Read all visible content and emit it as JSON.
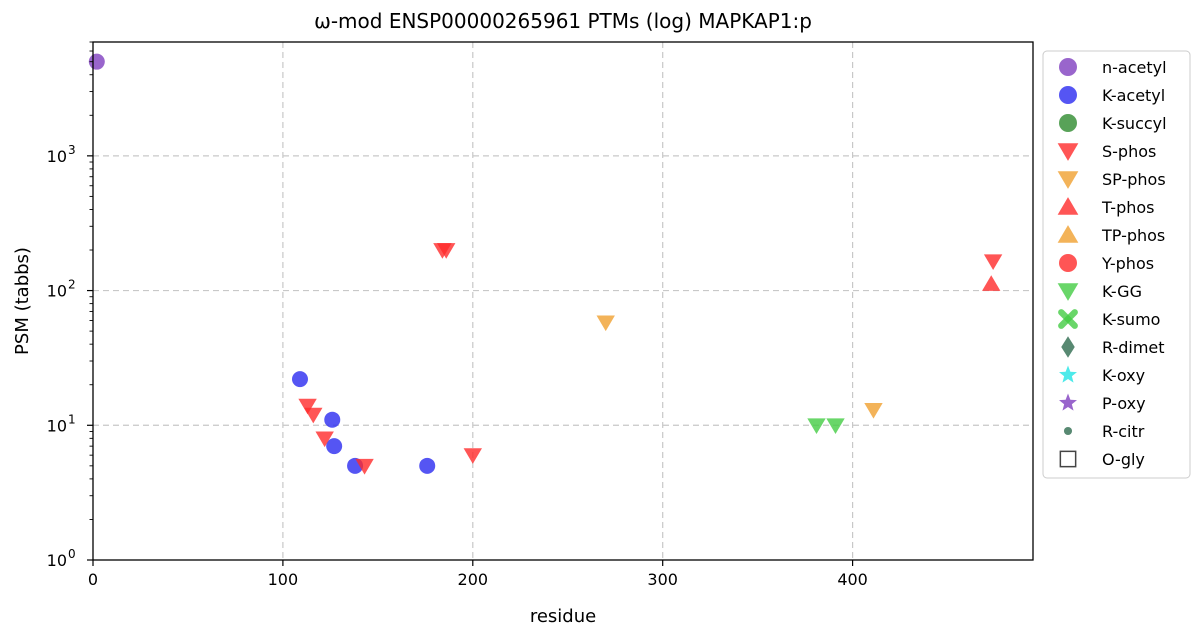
{
  "chart_data": {
    "type": "scatter",
    "title": "ω-mod ENSP00000265961 PTMs (log) MAPKAP1:p",
    "xlabel": "residue",
    "ylabel": "PSM (tabbs)",
    "xlim": [
      0,
      495
    ],
    "ylim": [
      1,
      7000
    ],
    "y_scale": "log",
    "grid": true,
    "legend_placement": "outside-right",
    "x_ticks": [
      {
        "value": 0,
        "label": "0"
      },
      {
        "value": 100,
        "label": "100"
      },
      {
        "value": 200,
        "label": "200"
      },
      {
        "value": 300,
        "label": "300"
      },
      {
        "value": 400,
        "label": "400"
      }
    ],
    "y_ticks": [
      {
        "value": 1,
        "base": "10",
        "exp": "0"
      },
      {
        "value": 10,
        "base": "10",
        "exp": "1"
      },
      {
        "value": 100,
        "base": "10",
        "exp": "2"
      },
      {
        "value": 1000,
        "base": "10",
        "exp": "3"
      }
    ],
    "series": [
      {
        "name": "n-acetyl",
        "marker": "circle",
        "color": "#7f3fbf",
        "points": [
          {
            "x": 2,
            "y": 5000
          }
        ]
      },
      {
        "name": "K-acetyl",
        "marker": "circle",
        "color": "#2b2bf0",
        "points": [
          {
            "x": 109,
            "y": 22
          },
          {
            "x": 126,
            "y": 11
          },
          {
            "x": 127,
            "y": 7
          },
          {
            "x": 138,
            "y": 5
          },
          {
            "x": 176,
            "y": 5
          }
        ]
      },
      {
        "name": "K-succyl",
        "marker": "circle",
        "color": "#2e8b2e",
        "points": []
      },
      {
        "name": "S-phos",
        "marker": "triangle-down",
        "color": "#ff2a2a",
        "points": [
          {
            "x": 113,
            "y": 14
          },
          {
            "x": 116,
            "y": 12
          },
          {
            "x": 122,
            "y": 8
          },
          {
            "x": 143,
            "y": 5
          },
          {
            "x": 184,
            "y": 200
          },
          {
            "x": 186,
            "y": 200
          },
          {
            "x": 200,
            "y": 6
          },
          {
            "x": 474,
            "y": 165
          }
        ]
      },
      {
        "name": "SP-phos",
        "marker": "triangle-down",
        "color": "#f0a030",
        "points": [
          {
            "x": 270,
            "y": 58
          },
          {
            "x": 411,
            "y": 13
          }
        ]
      },
      {
        "name": "T-phos",
        "marker": "triangle-up",
        "color": "#ff2a2a",
        "points": [
          {
            "x": 473,
            "y": 112
          }
        ]
      },
      {
        "name": "TP-phos",
        "marker": "triangle-up",
        "color": "#f0a030",
        "points": []
      },
      {
        "name": "Y-phos",
        "marker": "circle",
        "color": "#ff2a2a",
        "points": []
      },
      {
        "name": "K-GG",
        "marker": "triangle-down",
        "color": "#44cc44",
        "points": [
          {
            "x": 381,
            "y": 10
          },
          {
            "x": 391,
            "y": 10
          }
        ]
      },
      {
        "name": "K-sumo",
        "marker": "x",
        "color": "#44cc44",
        "points": []
      },
      {
        "name": "R-dimet",
        "marker": "diamond",
        "color": "#2e6b4f",
        "points": []
      },
      {
        "name": "K-oxy",
        "marker": "star",
        "color": "#22e5e5",
        "points": []
      },
      {
        "name": "P-oxy",
        "marker": "star",
        "color": "#7f3fbf",
        "points": []
      },
      {
        "name": "R-citr",
        "marker": "small-circle",
        "color": "#2e6b4f",
        "points": []
      },
      {
        "name": "O-gly",
        "marker": "square-open",
        "color": "#444444",
        "points": []
      }
    ]
  }
}
